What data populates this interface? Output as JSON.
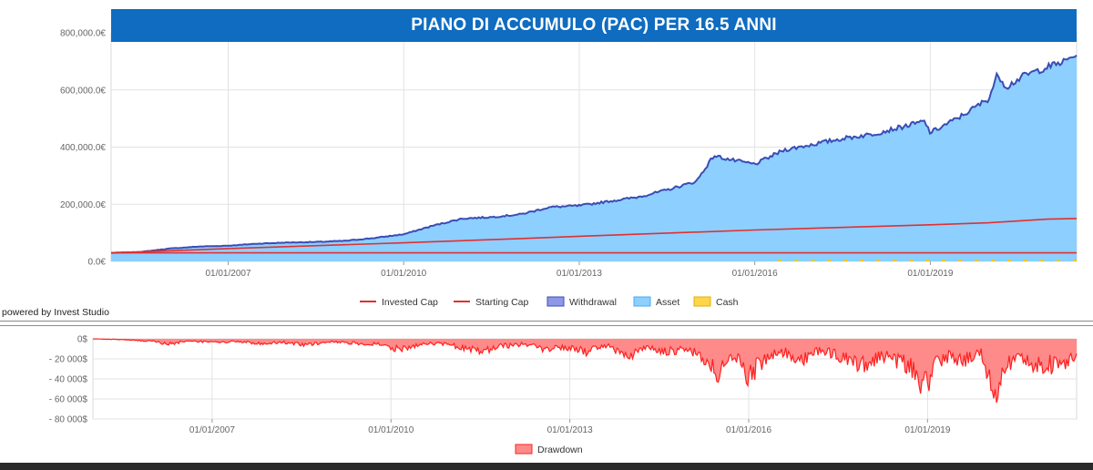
{
  "title": "PIANO DI ACCUMULO (PAC) PER 16.5 ANNI",
  "powered_by": "powered by Invest Studio",
  "colors": {
    "banner": "#0f6cc0",
    "asset_fill": "#8dcfff",
    "withdrawal_line": "#3a4db5",
    "invested_line": "#e03030",
    "starting_line": "#e03030",
    "cash": "#f5c518",
    "drawdown_fill": "#ff8a8a",
    "drawdown_line": "#ff2020"
  },
  "chart_data": [
    {
      "type": "area",
      "title": "PIANO DI ACCUMULO (PAC) PER 16.5 ANNI",
      "y_tick_labels": [
        "0.0€",
        "200,000.0€",
        "400,000.0€",
        "600,000.0€",
        "800,000.0€"
      ],
      "y_ticks": [
        0,
        200000,
        400000,
        600000,
        800000
      ],
      "ylim": [
        0,
        800000
      ],
      "x_tick_labels": [
        "01/01/2007",
        "01/01/2010",
        "01/01/2013",
        "01/01/2016",
        "01/01/2019"
      ],
      "x_ticks": [
        2007,
        2010,
        2013,
        2016,
        2019
      ],
      "xlim": [
        2005.0,
        2021.5
      ],
      "grid": true,
      "legend_position": "bottom",
      "legend": [
        {
          "name": "Invested Cap",
          "kind": "line",
          "color": "#e03030"
        },
        {
          "name": "Starting Cap",
          "kind": "line",
          "color": "#e03030"
        },
        {
          "name": "Withdrawal",
          "kind": "box",
          "color": "#8e98e6",
          "border": "#3a4db5"
        },
        {
          "name": "Asset",
          "kind": "box",
          "color": "#8dcfff",
          "border": "#4aa8f0"
        },
        {
          "name": "Cash",
          "kind": "box",
          "color": "#ffd54a",
          "border": "#e0b000"
        }
      ],
      "series": [
        {
          "name": "Asset",
          "x": [
            2005.0,
            2005.5,
            2006.0,
            2006.5,
            2007.0,
            2007.5,
            2008.0,
            2008.5,
            2009.0,
            2009.5,
            2010.0,
            2010.5,
            2011.0,
            2011.5,
            2012.0,
            2012.5,
            2013.0,
            2013.5,
            2014.0,
            2014.5,
            2015.0,
            2015.3,
            2015.6,
            2016.0,
            2016.5,
            2017.0,
            2017.5,
            2018.0,
            2018.5,
            2018.9,
            2019.0,
            2019.5,
            2020.0,
            2020.15,
            2020.3,
            2020.6,
            2021.0,
            2021.3,
            2021.5
          ],
          "values": [
            30000,
            33000,
            45000,
            52000,
            55000,
            62000,
            66000,
            68000,
            72000,
            82000,
            95000,
            125000,
            150000,
            155000,
            165000,
            190000,
            195000,
            210000,
            225000,
            250000,
            280000,
            370000,
            355000,
            340000,
            390000,
            410000,
            430000,
            445000,
            470000,
            490000,
            450000,
            505000,
            570000,
            655000,
            610000,
            650000,
            680000,
            700000,
            725000
          ]
        },
        {
          "name": "Withdrawal",
          "x": [
            2005.0,
            2005.5,
            2006.0,
            2006.5,
            2007.0,
            2007.5,
            2008.0,
            2008.5,
            2009.0,
            2009.5,
            2010.0,
            2010.5,
            2011.0,
            2011.5,
            2012.0,
            2012.5,
            2013.0,
            2013.5,
            2014.0,
            2014.5,
            2015.0,
            2015.3,
            2015.6,
            2016.0,
            2016.5,
            2017.0,
            2017.5,
            2018.0,
            2018.5,
            2018.9,
            2019.0,
            2019.5,
            2020.0,
            2020.15,
            2020.3,
            2020.6,
            2021.0,
            2021.3,
            2021.5
          ],
          "values": [
            30000,
            33000,
            45000,
            52000,
            55000,
            62000,
            66000,
            68000,
            72000,
            82000,
            95000,
            125000,
            150000,
            155000,
            165000,
            190000,
            195000,
            210000,
            225000,
            250000,
            280000,
            370000,
            355000,
            340000,
            390000,
            410000,
            430000,
            445000,
            470000,
            490000,
            450000,
            505000,
            570000,
            655000,
            610000,
            650000,
            680000,
            700000,
            725000
          ]
        },
        {
          "name": "Invested Cap",
          "x": [
            2005.0,
            2007.0,
            2010.0,
            2012.0,
            2013.0,
            2016.0,
            2019.0,
            2020.0,
            2021.0,
            2021.5
          ],
          "values": [
            30000,
            45000,
            65000,
            80000,
            88000,
            110000,
            128000,
            135000,
            148000,
            150000
          ]
        },
        {
          "name": "Starting Cap",
          "x": [
            2005.0,
            2021.5
          ],
          "values": [
            30000,
            30000
          ]
        },
        {
          "name": "Cash",
          "x": [
            2005.0,
            2021.5
          ],
          "values": [
            0,
            0
          ]
        }
      ]
    },
    {
      "type": "area",
      "y_tick_labels": [
        "0$",
        "- 20 000$",
        "- 40 000$",
        "- 60 000$",
        "- 80 000$"
      ],
      "y_ticks": [
        0,
        -20000,
        -40000,
        -60000,
        -80000
      ],
      "ylim": [
        -80000,
        0
      ],
      "x_tick_labels": [
        "01/01/2007",
        "01/01/2010",
        "01/01/2013",
        "01/01/2016",
        "01/01/2019"
      ],
      "x_ticks": [
        2007,
        2010,
        2013,
        2016,
        2019
      ],
      "xlim": [
        2005.0,
        2021.5
      ],
      "grid": true,
      "legend_position": "bottom",
      "legend": [
        {
          "name": "Drawdown",
          "kind": "box",
          "color": "#ff8a8a",
          "border": "#ff2020"
        }
      ],
      "series": [
        {
          "name": "Drawdown",
          "x": [
            2005.0,
            2005.5,
            2006.0,
            2006.3,
            2006.6,
            2007.0,
            2007.4,
            2007.8,
            2008.2,
            2008.6,
            2009.0,
            2009.4,
            2009.8,
            2010.1,
            2010.4,
            2010.8,
            2011.2,
            2011.6,
            2011.8,
            2012.2,
            2012.6,
            2013.0,
            2013.3,
            2013.6,
            2014.0,
            2014.3,
            2014.6,
            2015.0,
            2015.3,
            2015.45,
            2015.6,
            2015.8,
            2016.0,
            2016.1,
            2016.3,
            2016.6,
            2016.9,
            2017.2,
            2017.5,
            2017.8,
            2018.0,
            2018.2,
            2018.5,
            2018.8,
            2018.97,
            2019.1,
            2019.3,
            2019.6,
            2019.9,
            2020.0,
            2020.1,
            2020.2,
            2020.35,
            2020.6,
            2020.8,
            2021.0,
            2021.2,
            2021.4,
            2021.5
          ],
          "values": [
            0,
            -1000,
            -3000,
            -6000,
            -2000,
            -4000,
            -3000,
            -5000,
            -4000,
            -7000,
            -3000,
            -5000,
            -6000,
            -12000,
            -8000,
            -5000,
            -10000,
            -14000,
            -9000,
            -6000,
            -12000,
            -10000,
            -15000,
            -8000,
            -18000,
            -10000,
            -14000,
            -12000,
            -25000,
            -42000,
            -30000,
            -20000,
            -45000,
            -35000,
            -22000,
            -15000,
            -25000,
            -12000,
            -20000,
            -28000,
            -30000,
            -18000,
            -25000,
            -35000,
            -60000,
            -30000,
            -20000,
            -25000,
            -15000,
            -40000,
            -66000,
            -45000,
            -28000,
            -20000,
            -30000,
            -28000,
            -32000,
            -22000,
            -25000
          ]
        }
      ]
    }
  ]
}
